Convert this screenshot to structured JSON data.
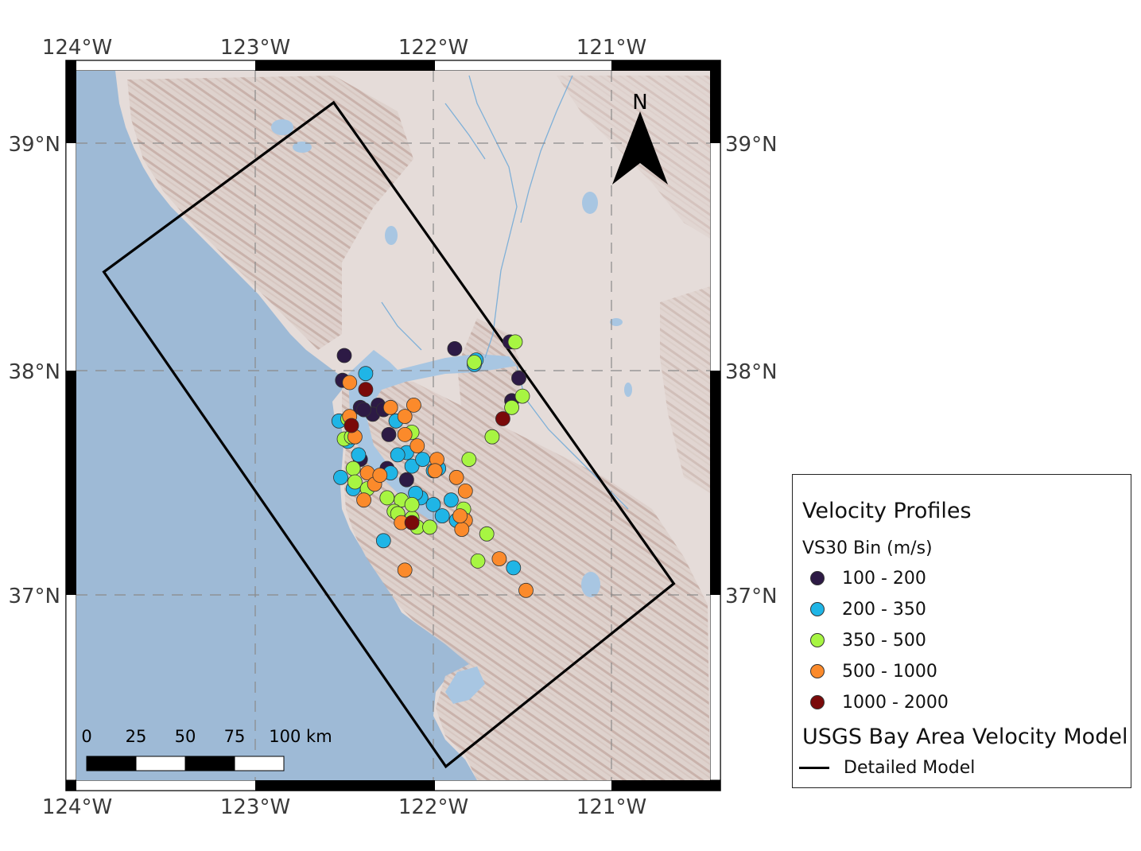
{
  "axes": {
    "top_ticks": [
      "124°W",
      "123°W",
      "122°W",
      "121°W"
    ],
    "bottom_ticks": [
      "124°W",
      "123°W",
      "122°W",
      "121°W"
    ],
    "left_ticks": [
      "39°N",
      "38°N",
      "37°N"
    ],
    "right_ticks": [
      "39°N",
      "38°N",
      "37°N"
    ],
    "lon_range": [
      -124.0,
      -120.45
    ],
    "lat_range": [
      36.2,
      39.35
    ],
    "grid": "dashed"
  },
  "north_arrow": {
    "label": "N"
  },
  "scale_bar": {
    "labels": [
      "0",
      "25",
      "50",
      "75",
      "100 km"
    ]
  },
  "legend": {
    "title": "Velocity Profiles",
    "subtitle": "VS30 Bin (m/s)",
    "bins": [
      {
        "label": "100 - 200",
        "color": "#2d1a45"
      },
      {
        "label": "200 - 350",
        "color": "#1fb5e6"
      },
      {
        "label": "350 - 500",
        "color": "#a7f542"
      },
      {
        "label": "500 - 1000",
        "color": "#fb8a2b"
      },
      {
        "label": "1000 - 2000",
        "color": "#7a0a0a"
      }
    ],
    "model_title": "USGS Bay Area Velocity Model",
    "model_line_label": "Detailed Model"
  },
  "colors": {
    "ocean": "#9ebad6",
    "land": "#e5dcd9",
    "relief": "#c9b3ac",
    "water": "#a8c6e2"
  },
  "detailed_model_polygon": [
    [
      -122.56,
      39.18
    ],
    [
      -120.65,
      37.05
    ],
    [
      -121.93,
      36.24
    ],
    [
      -123.85,
      38.43
    ]
  ],
  "chart_data": {
    "type": "scatter",
    "xlabel": "",
    "ylabel": "",
    "xlim": [
      -124.0,
      -120.45
    ],
    "ylim": [
      36.2,
      39.35
    ],
    "series": [
      {
        "name": "100 - 200",
        "color": "#2d1a45",
        "points": [
          [
            -122.5,
            38.06
          ],
          [
            -122.51,
            37.95
          ],
          [
            -122.41,
            37.83
          ],
          [
            -122.31,
            37.84
          ],
          [
            -122.34,
            37.8
          ],
          [
            -122.25,
            37.71
          ],
          [
            -122.41,
            37.6
          ],
          [
            -122.26,
            37.56
          ],
          [
            -122.15,
            37.51
          ],
          [
            -121.88,
            38.09
          ],
          [
            -121.57,
            38.12
          ],
          [
            -121.52,
            37.96
          ],
          [
            -121.56,
            37.86
          ],
          [
            -122.39,
            37.82
          ],
          [
            -122.28,
            37.82
          ]
        ]
      },
      {
        "name": "200 - 350",
        "color": "#1fb5e6",
        "points": [
          [
            -122.38,
            37.98
          ],
          [
            -122.53,
            37.77
          ],
          [
            -122.48,
            37.68
          ],
          [
            -122.42,
            37.62
          ],
          [
            -122.52,
            37.52
          ],
          [
            -122.21,
            37.77
          ],
          [
            -122.15,
            37.63
          ],
          [
            -122.12,
            37.57
          ],
          [
            -122.0,
            37.55
          ],
          [
            -122.07,
            37.43
          ],
          [
            -122.0,
            37.4
          ],
          [
            -121.95,
            37.35
          ],
          [
            -121.87,
            37.33
          ],
          [
            -121.9,
            37.42
          ],
          [
            -122.1,
            37.45
          ],
          [
            -122.24,
            37.54
          ],
          [
            -121.77,
            38.02
          ],
          [
            -121.76,
            38.04
          ],
          [
            -122.28,
            37.24
          ],
          [
            -121.55,
            37.12
          ],
          [
            -122.45,
            37.47
          ],
          [
            -122.2,
            37.62
          ],
          [
            -122.06,
            37.6
          ],
          [
            -121.97,
            37.56
          ]
        ]
      },
      {
        "name": "350 - 500",
        "color": "#a7f542",
        "points": [
          [
            -122.48,
            37.78
          ],
          [
            -122.45,
            37.56
          ],
          [
            -122.44,
            37.5
          ],
          [
            -122.37,
            37.47
          ],
          [
            -122.26,
            37.43
          ],
          [
            -122.18,
            37.42
          ],
          [
            -122.22,
            37.37
          ],
          [
            -122.12,
            37.34
          ],
          [
            -122.09,
            37.3
          ],
          [
            -122.02,
            37.3
          ],
          [
            -122.12,
            37.72
          ],
          [
            -121.8,
            37.6
          ],
          [
            -121.83,
            37.38
          ],
          [
            -121.7,
            37.27
          ],
          [
            -121.75,
            37.15
          ],
          [
            -121.67,
            37.7
          ],
          [
            -121.56,
            37.83
          ],
          [
            -121.5,
            37.88
          ],
          [
            -121.54,
            38.12
          ],
          [
            -121.77,
            38.03
          ],
          [
            -122.5,
            37.69
          ],
          [
            -122.46,
            37.7
          ],
          [
            -122.12,
            37.4
          ],
          [
            -122.2,
            37.36
          ]
        ]
      },
      {
        "name": "500 - 1000",
        "color": "#fb8a2b",
        "points": [
          [
            -122.47,
            37.94
          ],
          [
            -122.47,
            37.79
          ],
          [
            -122.44,
            37.7
          ],
          [
            -122.24,
            37.83
          ],
          [
            -122.16,
            37.79
          ],
          [
            -122.11,
            37.84
          ],
          [
            -122.16,
            37.71
          ],
          [
            -122.09,
            37.66
          ],
          [
            -121.98,
            37.6
          ],
          [
            -121.99,
            37.55
          ],
          [
            -121.87,
            37.52
          ],
          [
            -121.82,
            37.46
          ],
          [
            -122.37,
            37.54
          ],
          [
            -122.33,
            37.49
          ],
          [
            -122.39,
            37.42
          ],
          [
            -122.18,
            37.32
          ],
          [
            -121.82,
            37.33
          ],
          [
            -121.84,
            37.29
          ],
          [
            -121.63,
            37.16
          ],
          [
            -121.48,
            37.02
          ],
          [
            -122.16,
            37.11
          ],
          [
            -121.85,
            37.35
          ],
          [
            -122.3,
            37.53
          ]
        ]
      },
      {
        "name": "1000 - 2000",
        "color": "#7a0a0a",
        "points": [
          [
            -122.38,
            37.91
          ],
          [
            -122.46,
            37.75
          ],
          [
            -122.12,
            37.32
          ],
          [
            -121.61,
            37.78
          ]
        ]
      }
    ]
  }
}
